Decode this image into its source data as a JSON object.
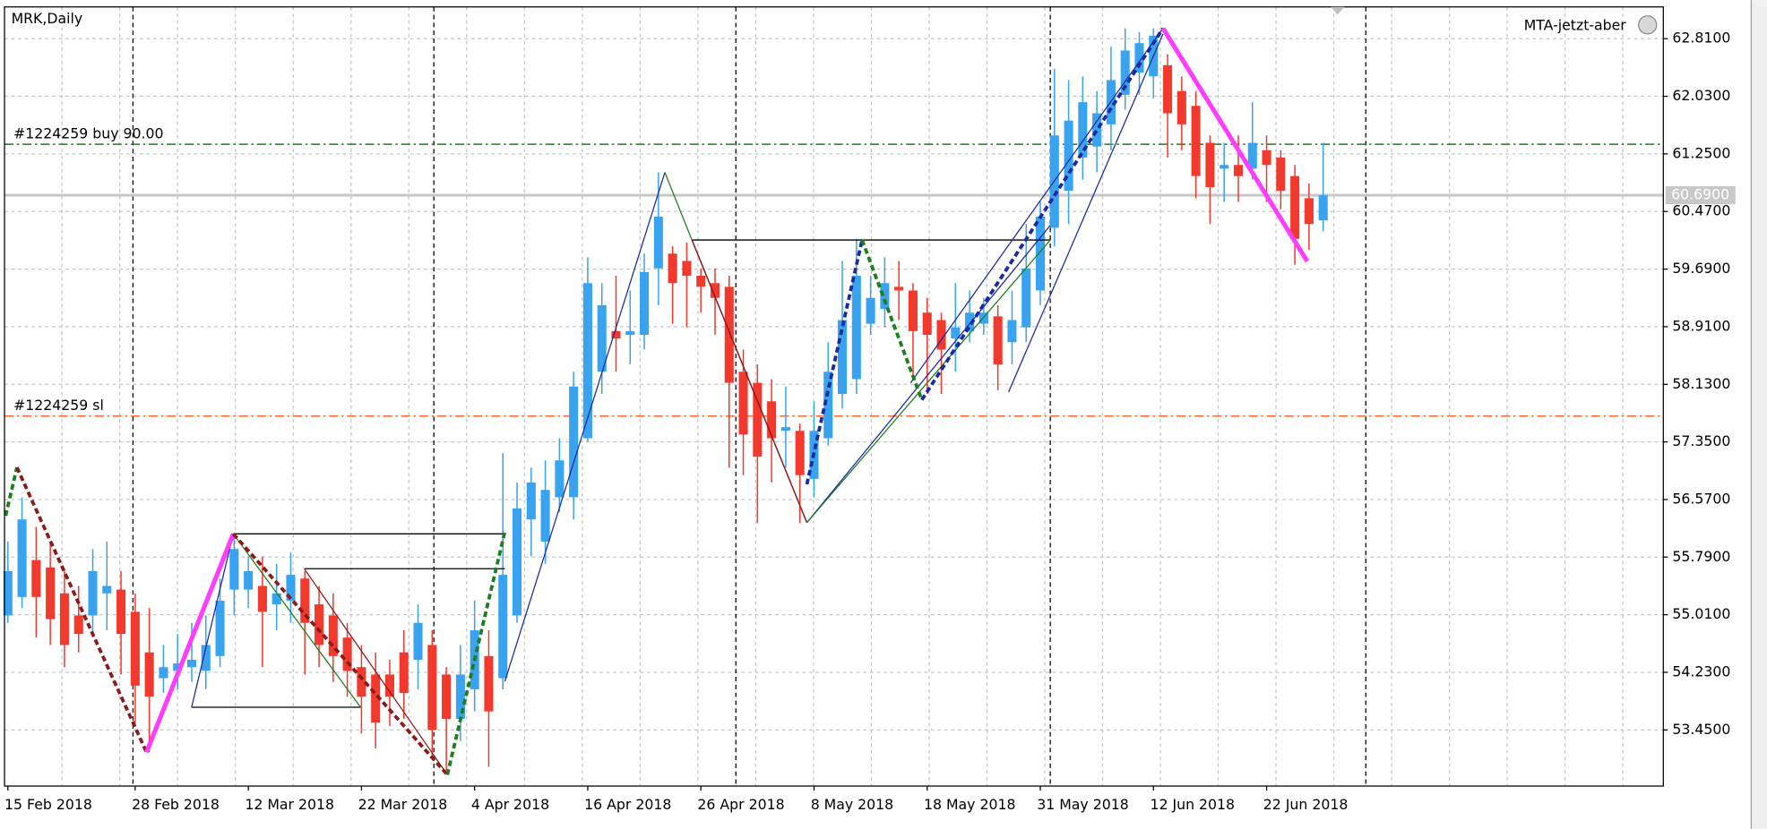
{
  "chart_data": {
    "type": "candlestick",
    "title": "MRK,Daily",
    "indicator": "MTA-jetzt-aber",
    "categories": [
      "15 Feb 2018",
      null,
      null,
      null,
      null,
      null,
      null,
      null,
      null,
      "28 Feb 2018",
      null,
      null,
      null,
      null,
      null,
      null,
      null,
      "12 Mar 2018",
      null,
      null,
      null,
      null,
      null,
      null,
      null,
      "22 Mar 2018",
      null,
      null,
      null,
      null,
      null,
      null,
      null,
      "4 Apr 2018",
      null,
      null,
      null,
      null,
      null,
      null,
      null,
      "16 Apr 2018",
      null,
      null,
      null,
      null,
      null,
      null,
      null,
      "26 Apr 2018",
      null,
      null,
      null,
      null,
      null,
      null,
      null,
      "8 May 2018",
      null,
      null,
      null,
      null,
      null,
      null,
      null,
      "18 May 2018",
      null,
      null,
      null,
      null,
      null,
      null,
      null,
      "31 May 2018",
      null,
      null,
      null,
      null,
      null,
      null,
      null,
      "12 Jun 2018",
      null,
      null,
      null,
      null,
      null,
      null,
      null,
      "22 Jun 2018",
      null,
      null,
      null,
      null
    ],
    "open": [
      55.0,
      55.25,
      55.75,
      55.65,
      55.3,
      55.0,
      55.0,
      55.3,
      55.35,
      55.05,
      54.5,
      54.15,
      54.25,
      54.3,
      54.25,
      54.45,
      55.35,
      55.35,
      55.4,
      55.15,
      55.2,
      55.5,
      55.15,
      55.0,
      54.7,
      54.3,
      54.2,
      54.2,
      54.5,
      54.4,
      54.6,
      54.2,
      53.6,
      54.0,
      54.45,
      54.15,
      55.0,
      56.3,
      56.0,
      56.6,
      56.6,
      57.4,
      58.3,
      58.85,
      58.8,
      58.8,
      59.7,
      59.9,
      59.8,
      59.6,
      59.5,
      59.45,
      58.3,
      58.15,
      57.9,
      57.5,
      57.5,
      56.85,
      57.4,
      58.0,
      58.2,
      58.95,
      59.15,
      59.45,
      59.4,
      59.1,
      59.0,
      58.75,
      58.85,
      58.95,
      59.05,
      58.7,
      58.9,
      59.4,
      60.25,
      60.75,
      61.2,
      61.35,
      61.65,
      62.05,
      62.35,
      62.3,
      62.45,
      62.1,
      61.9,
      61.4,
      61.05,
      61.1,
      61.05,
      61.3,
      61.2,
      60.95,
      60.65,
      60.35
    ],
    "high": [
      56.0,
      56.6,
      56.2,
      56.0,
      55.6,
      55.4,
      55.9,
      56.0,
      55.6,
      55.3,
      55.1,
      54.6,
      54.75,
      54.9,
      55.0,
      55.5,
      56.05,
      55.8,
      55.8,
      55.7,
      55.85,
      55.6,
      55.4,
      55.3,
      54.9,
      54.6,
      54.5,
      54.4,
      54.8,
      55.15,
      54.8,
      54.3,
      54.6,
      55.2,
      54.8,
      57.2,
      56.8,
      57.0,
      57.1,
      57.4,
      58.3,
      59.85,
      59.5,
      59.6,
      59.4,
      59.9,
      61.0,
      60.0,
      60.05,
      59.7,
      59.7,
      59.6,
      58.6,
      58.4,
      58.2,
      58.1,
      57.6,
      57.9,
      58.7,
      59.8,
      60.1,
      59.6,
      59.85,
      59.8,
      59.5,
      59.3,
      59.1,
      59.5,
      59.4,
      59.3,
      59.2,
      59.4,
      60.3,
      60.6,
      62.4,
      62.25,
      62.3,
      62.1,
      62.7,
      62.95,
      62.9,
      62.95,
      62.6,
      62.3,
      62.1,
      61.5,
      61.4,
      61.5,
      61.95,
      61.5,
      61.3,
      61.1,
      60.85,
      61.4
    ],
    "low": [
      54.9,
      55.1,
      54.7,
      54.6,
      54.3,
      54.5,
      54.7,
      54.8,
      54.2,
      53.5,
      53.15,
      53.95,
      54.0,
      54.1,
      54.0,
      54.3,
      55.0,
      55.1,
      54.3,
      54.8,
      54.9,
      54.2,
      54.3,
      54.1,
      53.9,
      53.4,
      53.2,
      53.5,
      53.6,
      54.0,
      53.1,
      52.9,
      53.3,
      53.7,
      52.95,
      54.0,
      54.9,
      55.8,
      55.7,
      56.4,
      56.3,
      57.35,
      58.0,
      58.3,
      58.4,
      58.6,
      59.2,
      58.95,
      58.9,
      59.1,
      58.8,
      57.0,
      56.9,
      56.25,
      56.8,
      57.0,
      56.25,
      56.6,
      57.3,
      57.8,
      58.0,
      58.8,
      58.9,
      59.0,
      58.2,
      58.0,
      58.0,
      58.3,
      58.7,
      58.8,
      58.05,
      58.4,
      58.7,
      59.2,
      60.0,
      60.3,
      60.9,
      61.0,
      61.3,
      61.85,
      62.05,
      62.0,
      61.2,
      61.3,
      60.65,
      60.3,
      60.6,
      60.6,
      60.9,
      60.6,
      60.5,
      59.75,
      59.95,
      60.2
    ],
    "close": [
      55.6,
      56.3,
      55.25,
      54.95,
      54.6,
      54.75,
      55.6,
      55.4,
      54.75,
      54.05,
      53.9,
      54.3,
      54.35,
      54.4,
      54.6,
      55.2,
      55.9,
      55.6,
      55.05,
      55.3,
      55.55,
      54.9,
      54.6,
      54.45,
      54.25,
      53.9,
      53.55,
      53.9,
      53.95,
      54.9,
      53.45,
      53.6,
      54.2,
      54.8,
      53.7,
      55.55,
      56.45,
      56.8,
      56.7,
      57.1,
      58.1,
      59.5,
      59.2,
      58.75,
      58.85,
      59.65,
      60.4,
      59.5,
      59.6,
      59.45,
      59.3,
      58.15,
      57.45,
      57.15,
      57.4,
      57.55,
      56.9,
      57.5,
      58.3,
      59.0,
      59.6,
      59.3,
      59.5,
      59.4,
      58.85,
      58.8,
      58.6,
      58.9,
      59.1,
      59.1,
      58.4,
      59.0,
      59.7,
      60.4,
      61.5,
      61.7,
      61.95,
      61.8,
      62.25,
      62.65,
      62.75,
      62.85,
      61.8,
      61.65,
      60.95,
      60.8,
      61.1,
      60.95,
      61.4,
      61.1,
      60.75,
      60.1,
      60.3,
      60.69
    ],
    "up_color": "#3aa3ef",
    "down_color": "#f2392e",
    "ylim": [
      52.69,
      63.24
    ],
    "yticks": [
      {
        "value": 53.45,
        "label": "53.4500"
      },
      {
        "value": 54.23,
        "label": "54.2300"
      },
      {
        "value": 55.01,
        "label": "55.0100"
      },
      {
        "value": 55.79,
        "label": "55.7900"
      },
      {
        "value": 56.57,
        "label": "56.5700"
      },
      {
        "value": 57.35,
        "label": "57.3500"
      },
      {
        "value": 58.13,
        "label": "58.1300"
      },
      {
        "value": 58.91,
        "label": "58.9100"
      },
      {
        "value": 59.69,
        "label": "59.6900"
      },
      {
        "value": 60.47,
        "label": "60.4700"
      },
      {
        "value": 61.25,
        "label": "61.2500"
      },
      {
        "value": 62.03,
        "label": "62.0300"
      },
      {
        "value": 62.81,
        "label": "62.8100"
      }
    ],
    "grid": true,
    "price_line": {
      "value": 60.69,
      "label": "60.6900",
      "color": "#c8c8c8"
    },
    "order_lines": [
      {
        "label": "#1224259 buy 90.00",
        "value": 61.38,
        "color": "#1e7d1e"
      },
      {
        "label": "#1224259 sl",
        "value": 57.7,
        "color": "#ff6a2a"
      }
    ]
  }
}
